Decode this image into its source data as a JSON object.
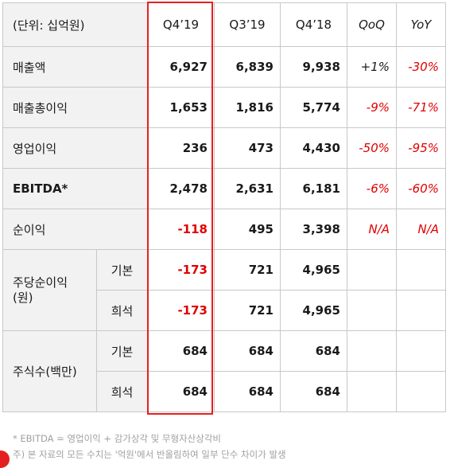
{
  "header": {
    "unit": "(단위: 십억원)",
    "q4_19": "Q4’19",
    "q3_19": "Q3’19",
    "q4_18": "Q4’18",
    "qoq": "QoQ",
    "yoy": "YoY"
  },
  "rows": [
    {
      "label": "매출액",
      "q4_19": "6,927",
      "q3_19": "6,839",
      "q4_18": "9,938",
      "qoq": "+1%",
      "yoy": "-30%"
    },
    {
      "label": "매출총이익",
      "q4_19": "1,653",
      "q3_19": "1,816",
      "q4_18": "5,774",
      "qoq": "-9%",
      "yoy": "-71%"
    },
    {
      "label": "영업이익",
      "q4_19": "236",
      "q3_19": "473",
      "q4_18": "4,430",
      "qoq": "-50%",
      "yoy": "-95%"
    },
    {
      "label": "EBITDA*",
      "q4_19": "2,478",
      "q3_19": "2,631",
      "q4_18": "6,181",
      "qoq": "-6%",
      "yoy": "-60%"
    },
    {
      "label": "순이익",
      "q4_19": "-118",
      "q3_19": "495",
      "q4_18": "3,398",
      "qoq": "N/A",
      "yoy": "N/A"
    }
  ],
  "eps": {
    "label": "주당순이익\n(원)",
    "basic_label": "기본",
    "diluted_label": "희석",
    "basic": {
      "q4_19": "-173",
      "q3_19": "721",
      "q4_18": "4,965"
    },
    "diluted": {
      "q4_19": "-173",
      "q3_19": "721",
      "q4_18": "4,965"
    }
  },
  "shares": {
    "label": "주식수(백만)",
    "basic_label": "기본",
    "diluted_label": "희석",
    "basic": {
      "q4_19": "684",
      "q3_19": "684",
      "q4_18": "684"
    },
    "diluted": {
      "q4_19": "684",
      "q3_19": "684",
      "q4_18": "684"
    }
  },
  "notes": {
    "ebitda": "* EBITDA = 영업이익 + 감가상각 및 무형자산상각비",
    "rounding": "주) 본 자료의 모든 수치는 '억원'에서 반올림하여 일부 단수 차이가 발생"
  },
  "colors": {
    "negative": "#e00000",
    "highlight_box": "#e52020",
    "label_bg": "#f2f2f2"
  }
}
